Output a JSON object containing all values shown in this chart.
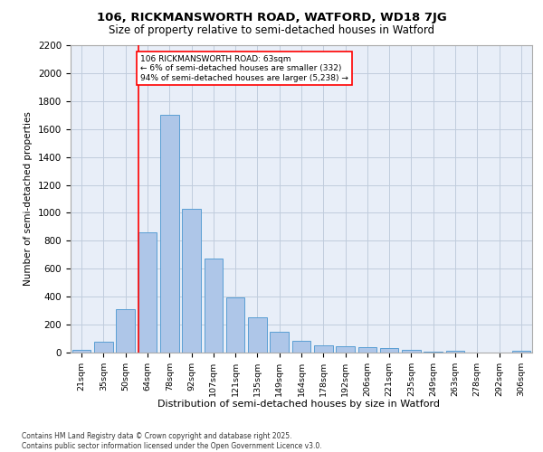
{
  "title1": "106, RICKMANSWORTH ROAD, WATFORD, WD18 7JG",
  "title2": "Size of property relative to semi-detached houses in Watford",
  "xlabel": "Distribution of semi-detached houses by size in Watford",
  "ylabel": "Number of semi-detached properties",
  "categories": [
    "21sqm",
    "35sqm",
    "50sqm",
    "64sqm",
    "78sqm",
    "92sqm",
    "107sqm",
    "121sqm",
    "135sqm",
    "149sqm",
    "164sqm",
    "178sqm",
    "192sqm",
    "206sqm",
    "221sqm",
    "235sqm",
    "249sqm",
    "263sqm",
    "278sqm",
    "292sqm",
    "306sqm"
  ],
  "values": [
    20,
    75,
    310,
    860,
    1700,
    1030,
    670,
    395,
    250,
    150,
    85,
    50,
    45,
    40,
    30,
    20,
    5,
    10,
    0,
    0,
    10
  ],
  "bar_color": "#aec6e8",
  "bar_edge_color": "#5a9fd4",
  "annotation_line1": "106 RICKMANSWORTH ROAD: 63sqm",
  "annotation_line2": "← 6% of semi-detached houses are smaller (332)",
  "annotation_line3": "94% of semi-detached houses are larger (5,238) →",
  "ylim": [
    0,
    2200
  ],
  "yticks": [
    0,
    200,
    400,
    600,
    800,
    1000,
    1200,
    1400,
    1600,
    1800,
    2000,
    2200
  ],
  "bg_color": "#e8eef8",
  "grid_color": "#c0ccdd",
  "footer1": "Contains HM Land Registry data © Crown copyright and database right 2025.",
  "footer2": "Contains public sector information licensed under the Open Government Licence v3.0."
}
